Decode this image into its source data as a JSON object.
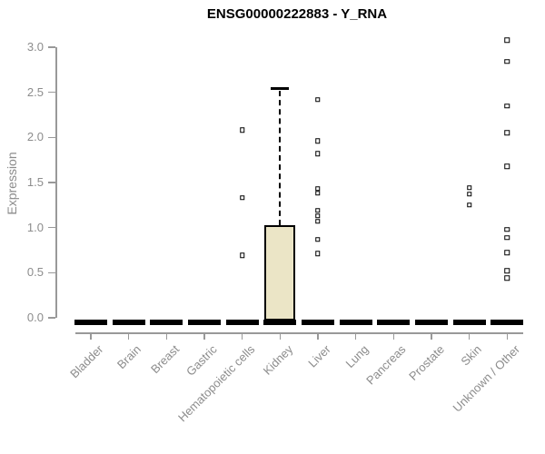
{
  "chart_data": {
    "type": "boxplot",
    "title": "ENSG00000222883 - Y_RNA",
    "ylabel": "Expression",
    "xlabel": "",
    "ylim": [
      0.0,
      3.0
    ],
    "grid": false,
    "legend": null,
    "yticks": [
      {
        "label": "0.0",
        "value": 0.0
      },
      {
        "label": "0.5",
        "value": 0.5
      },
      {
        "label": "1.0",
        "value": 1.0
      },
      {
        "label": "1.5",
        "value": 1.5
      },
      {
        "label": "2.0",
        "value": 2.0
      },
      {
        "label": "2.5",
        "value": 2.5
      },
      {
        "label": "3.0",
        "value": 3.0
      }
    ],
    "categories": [
      "Bladder",
      "Brain",
      "Breast",
      "Gastric",
      "Hematopoietic cells",
      "Kidney",
      "Liver",
      "Lung",
      "Pancreas",
      "Prostate",
      "Skin",
      "Unknown / Other"
    ],
    "boxes": [
      {
        "category": "Bladder",
        "q1": 0,
        "median": 0,
        "q3": 0,
        "whisker_low": 0,
        "whisker_high": 0,
        "outliers": []
      },
      {
        "category": "Brain",
        "q1": 0,
        "median": 0,
        "q3": 0,
        "whisker_low": 0,
        "whisker_high": 0,
        "outliers": []
      },
      {
        "category": "Breast",
        "q1": 0,
        "median": 0,
        "q3": 0,
        "whisker_low": 0,
        "whisker_high": 0,
        "outliers": []
      },
      {
        "category": "Gastric",
        "q1": 0,
        "median": 0,
        "q3": 0,
        "whisker_low": 0,
        "whisker_high": 0,
        "outliers": []
      },
      {
        "category": "Hematopoietic cells",
        "q1": 0,
        "median": 0,
        "q3": 0,
        "whisker_low": 0,
        "whisker_high": 0,
        "outliers": [
          2.08,
          1.33,
          0.69
        ]
      },
      {
        "category": "Kidney",
        "q1": 0,
        "median": 0,
        "q3": 1.03,
        "whisker_low": 0,
        "whisker_high": 2.54,
        "outliers": []
      },
      {
        "category": "Liver",
        "q1": 0,
        "median": 0,
        "q3": 0,
        "whisker_low": 0,
        "whisker_high": 0,
        "outliers": [
          2.42,
          1.96,
          1.82,
          1.43,
          1.38,
          1.19,
          1.13,
          1.07,
          0.87,
          0.71
        ]
      },
      {
        "category": "Lung",
        "q1": 0,
        "median": 0,
        "q3": 0,
        "whisker_low": 0,
        "whisker_high": 0,
        "outliers": []
      },
      {
        "category": "Pancreas",
        "q1": 0,
        "median": 0,
        "q3": 0,
        "whisker_low": 0,
        "whisker_high": 0,
        "outliers": []
      },
      {
        "category": "Prostate",
        "q1": 0,
        "median": 0,
        "q3": 0,
        "whisker_low": 0,
        "whisker_high": 0,
        "outliers": []
      },
      {
        "category": "Skin",
        "q1": 0,
        "median": 0,
        "q3": 0,
        "whisker_low": 0,
        "whisker_high": 0,
        "outliers": [
          1.44,
          1.37,
          1.25
        ]
      },
      {
        "category": "Unknown / Other",
        "q1": 0,
        "median": 0,
        "q3": 0,
        "whisker_low": 0,
        "whisker_high": 0,
        "outliers": [
          3.08,
          2.84,
          2.35,
          2.05,
          1.68,
          0.98,
          0.89,
          0.72,
          0.52,
          0.44
        ]
      }
    ],
    "colors": {
      "box_fill": "#ebe5c6",
      "box_stroke": "#000000",
      "point_stroke": "#000000",
      "axis": "#999999",
      "tick_text": "#8c8c8c",
      "title_text": "#000000",
      "background": "#ffffff"
    }
  }
}
